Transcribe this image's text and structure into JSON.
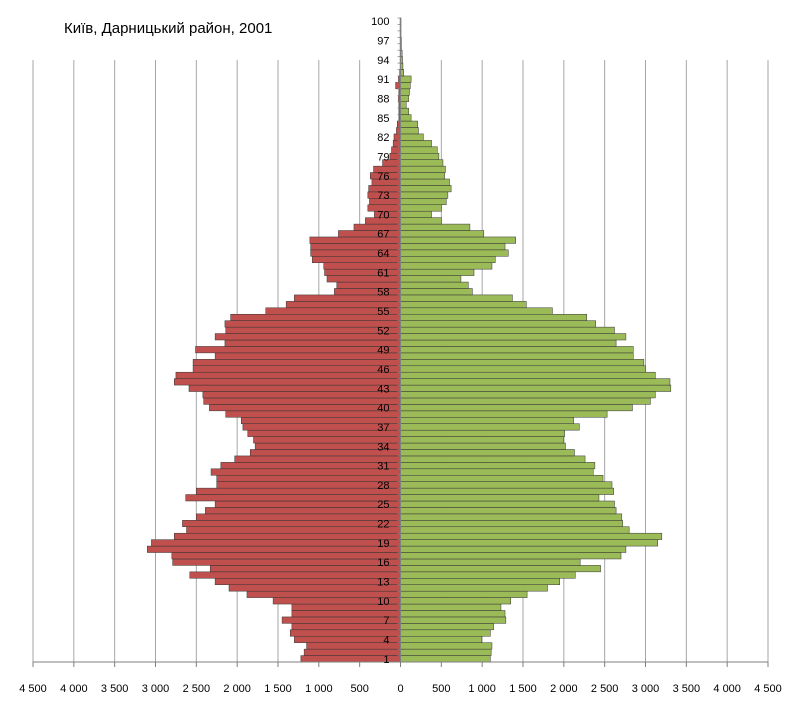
{
  "chart_data": {
    "type": "bar",
    "title": "Київ, Дарницький район, 2001",
    "orientation": "horizontal-population-pyramid",
    "xlim": [
      -4500,
      4500
    ],
    "x_ticks": [
      -4500,
      -4000,
      -3500,
      -3000,
      -2500,
      -2000,
      -1500,
      -1000,
      -500,
      0,
      500,
      1000,
      1500,
      2000,
      2500,
      3000,
      3500,
      4000,
      4500
    ],
    "x_tick_labels": [
      "4 500",
      "4 000",
      "3 500",
      "3 000",
      "2 500",
      "2 000",
      "1 500",
      "1 000",
      "500",
      "0",
      "500",
      "1 000",
      "1 500",
      "2 000",
      "2 500",
      "3 000",
      "3 500",
      "4 000",
      "4 500"
    ],
    "y_tick_labels": [
      "1",
      "4",
      "7",
      "10",
      "13",
      "16",
      "19",
      "22",
      "25",
      "28",
      "31",
      "34",
      "37",
      "40",
      "43",
      "46",
      "49",
      "52",
      "55",
      "58",
      "61",
      "64",
      "67",
      "70",
      "73",
      "76",
      "79",
      "82",
      "85",
      "88",
      "91",
      "94",
      "97",
      "100"
    ],
    "categories": [
      1,
      2,
      3,
      4,
      5,
      6,
      7,
      8,
      9,
      10,
      11,
      12,
      13,
      14,
      15,
      16,
      17,
      18,
      19,
      20,
      21,
      22,
      23,
      24,
      25,
      26,
      27,
      28,
      29,
      30,
      31,
      32,
      33,
      34,
      35,
      36,
      37,
      38,
      39,
      40,
      41,
      42,
      43,
      44,
      45,
      46,
      47,
      48,
      49,
      50,
      51,
      52,
      53,
      54,
      55,
      56,
      57,
      58,
      59,
      60,
      61,
      62,
      63,
      64,
      65,
      66,
      67,
      68,
      69,
      70,
      71,
      72,
      73,
      74,
      75,
      76,
      77,
      78,
      79,
      80,
      81,
      82,
      83,
      84,
      85,
      86,
      87,
      88,
      89,
      90,
      91,
      92,
      93,
      94,
      95,
      96,
      97,
      98,
      99,
      100
    ],
    "colors": {
      "left": "#c0504d",
      "right": "#9bbb59",
      "bar_border": "#333333",
      "grid": "#a6a6a6"
    },
    "series": [
      {
        "side": "left",
        "values": [
          1220,
          1180,
          1150,
          1300,
          1350,
          1330,
          1450,
          1330,
          1330,
          1560,
          1880,
          2100,
          2270,
          2580,
          2330,
          2790,
          2800,
          3100,
          3050,
          2770,
          2620,
          2670,
          2500,
          2390,
          2270,
          2630,
          2500,
          2250,
          2250,
          2320,
          2200,
          2030,
          1840,
          1780,
          1800,
          1870,
          1930,
          1950,
          2140,
          2340,
          2410,
          2420,
          2590,
          2770,
          2750,
          2540,
          2540,
          2270,
          2510,
          2150,
          2270,
          2140,
          2150,
          2080,
          1650,
          1400,
          1300,
          810,
          780,
          900,
          930,
          940,
          1080,
          1100,
          1100,
          1110,
          760,
          570,
          430,
          320,
          400,
          380,
          400,
          390,
          350,
          370,
          330,
          220,
          130,
          110,
          90,
          80,
          50,
          40,
          20,
          20,
          20,
          25,
          20,
          60,
          25,
          10,
          5,
          5,
          5,
          5,
          5,
          5,
          5,
          5
        ]
      },
      {
        "side": "right",
        "values": [
          1100,
          1110,
          1120,
          990,
          1100,
          1140,
          1290,
          1280,
          1230,
          1350,
          1550,
          1800,
          1950,
          2140,
          2450,
          2200,
          2700,
          2760,
          3150,
          3200,
          2800,
          2720,
          2710,
          2640,
          2620,
          2430,
          2610,
          2590,
          2480,
          2360,
          2380,
          2260,
          2130,
          2020,
          2000,
          2010,
          2190,
          2120,
          2530,
          2840,
          3060,
          3120,
          3310,
          3300,
          3120,
          3000,
          2980,
          2850,
          2850,
          2640,
          2760,
          2620,
          2390,
          2280,
          1860,
          1540,
          1370,
          880,
          830,
          740,
          900,
          1120,
          1160,
          1320,
          1280,
          1410,
          1020,
          850,
          500,
          380,
          500,
          560,
          580,
          620,
          600,
          540,
          550,
          520,
          470,
          450,
          380,
          280,
          220,
          210,
          130,
          100,
          70,
          100,
          110,
          120,
          130,
          40,
          30,
          25,
          20,
          10,
          10,
          5,
          5,
          5
        ]
      }
    ]
  }
}
